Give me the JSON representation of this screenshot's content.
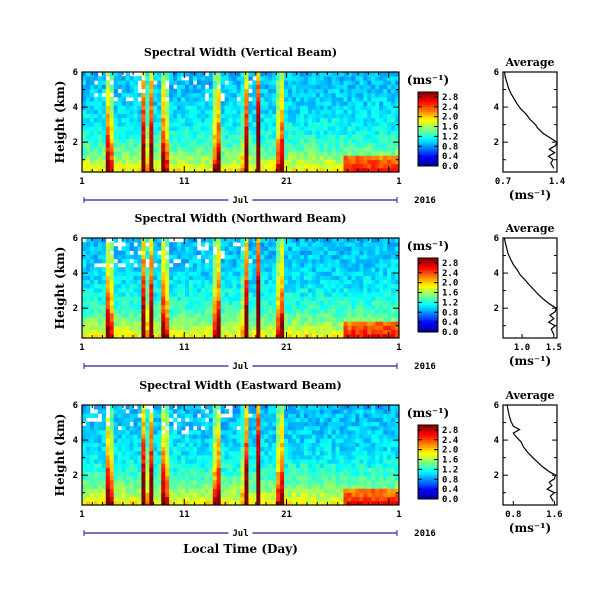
{
  "chart_data": [
    {
      "type": "heatmap",
      "title": "Spectral Width (Vertical Beam)",
      "ylabel": "Height (km)",
      "xlabel": "",
      "month_label": "Jul",
      "year_label": "2016",
      "x_ticks": [
        "1",
        "11",
        "21",
        "1"
      ],
      "y_ticks": [
        "2",
        "4",
        "6"
      ],
      "ylim": [
        0.3,
        6.0
      ],
      "colorbar": {
        "unit": "(ms⁻¹)",
        "ticks": [
          "0.0",
          "0.4",
          "0.8",
          "1.2",
          "1.6",
          "2.0",
          "2.4",
          "2.8"
        ],
        "range": [
          0.0,
          3.0
        ]
      },
      "average": {
        "title": "Average",
        "xlabel": "(ms⁻¹)",
        "x_ticks": [
          "0.7",
          "1.4"
        ],
        "xlim": [
          0.7,
          1.4
        ],
        "y_ticks": [
          "2",
          "4",
          "6"
        ],
        "profile": [
          [
            0.5,
            1.36
          ],
          [
            0.8,
            1.32
          ],
          [
            1.0,
            1.35
          ],
          [
            1.2,
            1.29
          ],
          [
            1.4,
            1.37
          ],
          [
            1.6,
            1.3
          ],
          [
            1.8,
            1.38
          ],
          [
            2.0,
            1.4
          ],
          [
            2.2,
            1.33
          ],
          [
            2.5,
            1.22
          ],
          [
            2.8,
            1.15
          ],
          [
            3.0,
            1.12
          ],
          [
            3.3,
            1.05
          ],
          [
            3.6,
            1.0
          ],
          [
            3.9,
            0.93
          ],
          [
            4.2,
            0.88
          ],
          [
            4.5,
            0.84
          ],
          [
            4.8,
            0.8
          ],
          [
            5.1,
            0.77
          ],
          [
            5.4,
            0.75
          ],
          [
            5.7,
            0.73
          ],
          [
            6.0,
            0.72
          ]
        ]
      }
    },
    {
      "type": "heatmap",
      "title": "Spectral Width (Northward Beam)",
      "ylabel": "Height (km)",
      "xlabel": "",
      "month_label": "Jul",
      "year_label": "2016",
      "x_ticks": [
        "1",
        "11",
        "21",
        "1"
      ],
      "y_ticks": [
        "2",
        "4",
        "6"
      ],
      "ylim": [
        0.3,
        6.0
      ],
      "colorbar": {
        "unit": "(ms⁻¹)",
        "ticks": [
          "0.0",
          "0.4",
          "0.8",
          "1.2",
          "1.6",
          "2.0",
          "2.4",
          "2.8"
        ],
        "range": [
          0.0,
          3.0
        ]
      },
      "average": {
        "title": "Average",
        "xlabel": "(ms⁻¹)",
        "x_ticks": [
          "1.0",
          "1.5"
        ],
        "xlim": [
          0.7,
          1.55
        ],
        "y_ticks": [
          "2",
          "4",
          "6"
        ],
        "profile": [
          [
            0.5,
            1.5
          ],
          [
            0.8,
            1.46
          ],
          [
            1.0,
            1.52
          ],
          [
            1.2,
            1.42
          ],
          [
            1.4,
            1.5
          ],
          [
            1.6,
            1.44
          ],
          [
            1.8,
            1.52
          ],
          [
            2.0,
            1.54
          ],
          [
            2.2,
            1.45
          ],
          [
            2.5,
            1.34
          ],
          [
            2.8,
            1.25
          ],
          [
            3.0,
            1.2
          ],
          [
            3.3,
            1.12
          ],
          [
            3.6,
            1.05
          ],
          [
            3.9,
            0.97
          ],
          [
            4.2,
            0.92
          ],
          [
            4.5,
            0.86
          ],
          [
            4.8,
            0.82
          ],
          [
            5.1,
            0.78
          ],
          [
            5.4,
            0.76
          ],
          [
            5.7,
            0.74
          ],
          [
            6.0,
            0.72
          ]
        ]
      }
    },
    {
      "type": "heatmap",
      "title": "Spectral Width (Eastward Beam)",
      "ylabel": "Height (km)",
      "xlabel": "Local Time (Day)",
      "month_label": "Jul",
      "year_label": "2016",
      "x_ticks": [
        "1",
        "11",
        "21",
        "1"
      ],
      "y_ticks": [
        "2",
        "4",
        "6"
      ],
      "ylim": [
        0.3,
        6.0
      ],
      "colorbar": {
        "unit": "(ms⁻¹)",
        "ticks": [
          "0.0",
          "0.4",
          "0.8",
          "1.2",
          "1.6",
          "2.0",
          "2.4",
          "2.8"
        ],
        "range": [
          0.0,
          3.0
        ]
      },
      "average": {
        "title": "Average",
        "xlabel": "(ms⁻¹)",
        "x_ticks": [
          "0.8",
          "1.6"
        ],
        "xlim": [
          0.6,
          1.65
        ],
        "y_ticks": [
          "2",
          "4",
          "6"
        ],
        "profile": [
          [
            0.5,
            1.58
          ],
          [
            0.8,
            1.52
          ],
          [
            1.0,
            1.6
          ],
          [
            1.2,
            1.46
          ],
          [
            1.4,
            1.55
          ],
          [
            1.6,
            1.5
          ],
          [
            1.8,
            1.6
          ],
          [
            2.0,
            1.62
          ],
          [
            2.2,
            1.5
          ],
          [
            2.5,
            1.36
          ],
          [
            2.8,
            1.25
          ],
          [
            3.0,
            1.18
          ],
          [
            3.3,
            1.08
          ],
          [
            3.6,
            1.0
          ],
          [
            3.9,
            0.95
          ],
          [
            4.2,
            0.85
          ],
          [
            4.4,
            0.8
          ],
          [
            4.6,
            0.92
          ],
          [
            4.8,
            0.8
          ],
          [
            5.1,
            0.75
          ],
          [
            5.4,
            0.72
          ],
          [
            5.7,
            0.7
          ],
          [
            6.0,
            0.68
          ]
        ]
      }
    }
  ]
}
